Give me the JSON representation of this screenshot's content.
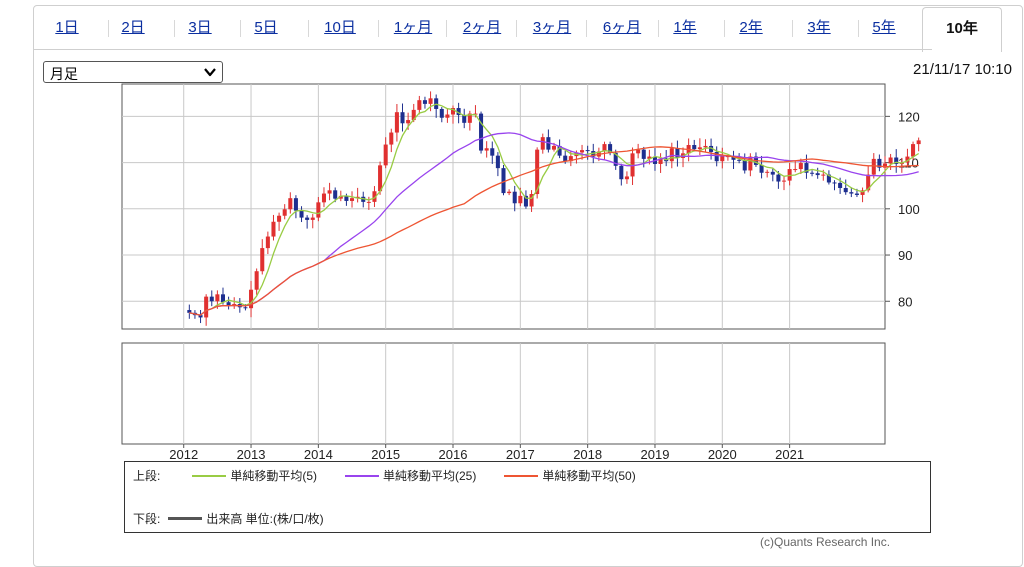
{
  "tabs": [
    {
      "label": "1日",
      "active": false
    },
    {
      "label": "2日",
      "active": false
    },
    {
      "label": "3日",
      "active": false
    },
    {
      "label": "5日",
      "active": false
    },
    {
      "label": "10日",
      "active": false
    },
    {
      "label": "1ヶ月",
      "active": false
    },
    {
      "label": "2ヶ月",
      "active": false
    },
    {
      "label": "3ヶ月",
      "active": false
    },
    {
      "label": "6ヶ月",
      "active": false
    },
    {
      "label": "1年",
      "active": false
    },
    {
      "label": "2年",
      "active": false
    },
    {
      "label": "3年",
      "active": false
    },
    {
      "label": "5年",
      "active": false
    },
    {
      "label": "10年",
      "active": true
    }
  ],
  "period_select": {
    "value": "月足"
  },
  "timestamp": "21/11/17 10:10",
  "legend": {
    "upper_label": "上段:",
    "lower_label": "下段:",
    "ma": [
      {
        "label": "単純移動平均(5)",
        "color": "#99cc44"
      },
      {
        "label": "単純移動平均(25)",
        "color": "#9944ee"
      },
      {
        "label": "単純移動平均(50)",
        "color": "#ee5533"
      }
    ],
    "volume_label": "出来高 単位:(株/口/枚)",
    "volume_color": "#555555"
  },
  "copyright": "(c)Quants Research Inc.",
  "colors": {
    "up": "#e03030",
    "down": "#1e2f8f",
    "grid": "#c8c8c8",
    "plot_border": "#555555"
  },
  "chart_data": {
    "type": "candlestick",
    "interval": "monthly",
    "x_tick_labels": [
      "2012",
      "2013",
      "2014",
      "2015",
      "2016",
      "2017",
      "2018",
      "2019",
      "2020",
      "2021"
    ],
    "x_tick_dates": [
      "2012-01",
      "2013-01",
      "2014-01",
      "2015-01",
      "2016-01",
      "2017-01",
      "2018-01",
      "2019-01",
      "2020-01",
      "2021-01"
    ],
    "xlim": [
      "2011-02",
      "2022-06"
    ],
    "ylim": [
      74,
      127
    ],
    "y_ticks": [
      80,
      90,
      100,
      110,
      120
    ],
    "grid": true,
    "closes": {
      "start": "2012-02",
      "values": [
        77.5,
        77.0,
        76.5,
        81.0,
        80.0,
        81.5,
        79.8,
        79.0,
        79.4,
        78.7,
        78.5,
        82.5,
        86.5,
        91.5,
        94.0,
        97.2,
        98.5,
        99.9,
        102.3,
        99.6,
        98.1,
        97.6,
        98.1,
        101.4,
        103.3,
        104.0,
        102.2,
        102.8,
        101.7,
        102.3,
        102.6,
        101.5,
        101.5,
        103.8,
        109.4,
        113.9,
        116.5,
        120.9,
        118.5,
        119.2,
        121.4,
        123.5,
        122.7,
        123.9,
        121.6,
        119.7,
        120.4,
        121.8,
        120.3,
        118.6,
        120.6,
        120.6,
        112.6,
        113.1,
        111.5,
        108.8,
        103.4,
        103.7,
        101.2,
        102.8,
        100.5,
        103.2,
        112.8,
        115.5,
        112.8,
        113.6,
        111.5,
        110.3,
        111.4,
        112.2,
        112.7,
        112.5,
        111.3,
        112.4,
        114.0,
        112.1,
        109.3,
        106.4,
        107.0,
        112.0,
        112.8,
        110.8,
        111.3,
        109.7,
        110.9,
        110.3,
        113.1,
        111.0,
        112.0,
        113.8,
        112.9,
        113.3,
        113.6,
        112.3,
        110.3,
        111.4,
        111.4,
        110.6,
        110.5,
        108.3,
        111.3,
        109.5,
        107.8,
        108.0,
        107.4,
        105.9,
        106.1,
        108.6,
        108.6,
        109.9,
        107.8,
        107.7,
        107.3,
        107.4,
        105.7,
        105.6,
        104.5,
        103.6,
        103.3,
        103.0,
        104.0,
        107.4,
        110.8,
        108.9,
        109.8,
        111.1,
        109.7,
        110.0,
        111.3,
        114.0,
        114.8
      ]
    },
    "volume_panel": {
      "values": []
    },
    "series": [
      {
        "name": "単純移動平均(5)",
        "color": "#99cc44",
        "period": 5
      },
      {
        "name": "単純移動平均(25)",
        "color": "#9944ee",
        "period": 25
      },
      {
        "name": "単純移動平均(50)",
        "color": "#ee5533",
        "period": 50
      }
    ]
  }
}
